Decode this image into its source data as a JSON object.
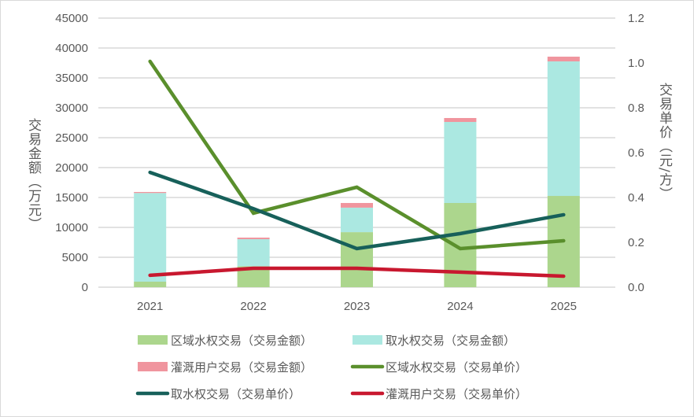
{
  "chart_data": {
    "type": "bar",
    "categories": [
      "2021",
      "2022",
      "2023",
      "2024",
      "2025"
    ],
    "y_left": {
      "title": "交易金额（万元）",
      "range": [
        0,
        45000
      ],
      "ticks": [
        0,
        5000,
        10000,
        15000,
        20000,
        25000,
        30000,
        35000,
        40000,
        45000
      ]
    },
    "y_right": {
      "title": "交易单价（元/方）",
      "range": [
        0,
        1.2
      ],
      "ticks": [
        "0.0",
        "0.2",
        "0.4",
        "0.6",
        "0.8",
        "1.0",
        "1.2"
      ]
    },
    "grid": true,
    "legend_position": "bottom",
    "bar_series": [
      {
        "name": "区域水权交易（交易金额）",
        "color": "#acd68d",
        "values": [
          920,
          3510,
          9200,
          14080,
          15260
        ]
      },
      {
        "name": "取水权交易（交易金额）",
        "color": "#abe8e1",
        "values": [
          14830,
          4520,
          4100,
          13550,
          22500
        ]
      },
      {
        "name": "灌溉用户交易（交易金额）",
        "color": "#f0959e",
        "values": [
          170,
          260,
          780,
          660,
          790
        ]
      }
    ],
    "line_series": [
      {
        "name": "区域水权交易（交易单价）",
        "color": "#5a8f2c",
        "values": [
          1.007,
          0.33,
          0.446,
          0.172,
          0.207
        ]
      },
      {
        "name": "取水权交易（交易单价）",
        "color": "#17605a",
        "values": [
          0.512,
          0.35,
          0.172,
          0.239,
          0.323
        ]
      },
      {
        "name": "灌溉用户交易（交易单价）",
        "color": "#c8182f",
        "values": [
          0.053,
          0.084,
          0.084,
          0.067,
          0.049
        ]
      }
    ]
  }
}
